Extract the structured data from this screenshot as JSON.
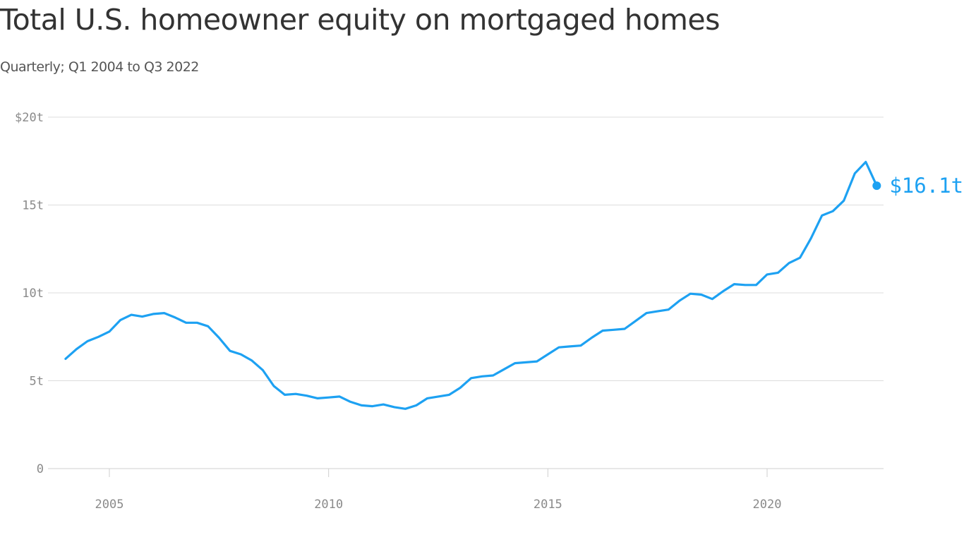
{
  "chart_data": {
    "type": "line",
    "title": "Total U.S. homeowner equity on mortgaged homes",
    "subtitle": "Quarterly; Q1 2004 to Q3 2022",
    "xlabel": "",
    "ylabel": "",
    "xlim": [
      2004,
      2022.5
    ],
    "ylim": [
      0,
      20
    ],
    "grid": true,
    "line_color": "#1da1f2",
    "x_ticks": [
      {
        "value": 2005,
        "label": "2005"
      },
      {
        "value": 2010,
        "label": "2010"
      },
      {
        "value": 2015,
        "label": "2015"
      },
      {
        "value": 2020,
        "label": "2020"
      }
    ],
    "y_ticks": [
      {
        "value": 0,
        "label": "0"
      },
      {
        "value": 5,
        "label": "5t"
      },
      {
        "value": 10,
        "label": "10t"
      },
      {
        "value": 15,
        "label": "15t"
      },
      {
        "value": 20,
        "label": "$20t"
      }
    ],
    "end_label": "$16.1t",
    "series": [
      {
        "x": [
          2004.0,
          2004.25,
          2004.5,
          2004.75,
          2005.0,
          2005.25,
          2005.5,
          2005.75,
          2006.0,
          2006.25,
          2006.5,
          2006.75,
          2007.0,
          2007.25,
          2007.5,
          2007.75,
          2008.0,
          2008.25,
          2008.5,
          2008.75,
          2009.0,
          2009.25,
          2009.5,
          2009.75,
          2010.0,
          2010.25,
          2010.5,
          2010.75,
          2011.0,
          2011.25,
          2011.5,
          2011.75,
          2012.0,
          2012.25,
          2012.5,
          2012.75,
          2013.0,
          2013.25,
          2013.5,
          2013.75,
          2014.0,
          2014.25,
          2014.5,
          2014.75,
          2015.0,
          2015.25,
          2015.5,
          2015.75,
          2016.0,
          2016.25,
          2016.5,
          2016.75,
          2017.0,
          2017.25,
          2017.5,
          2017.75,
          2018.0,
          2018.25,
          2018.5,
          2018.75,
          2019.0,
          2019.25,
          2019.5,
          2019.75,
          2020.0,
          2020.25,
          2020.5,
          2020.75,
          2021.0,
          2021.25,
          2021.5,
          2021.75,
          2022.0,
          2022.25,
          2022.5
        ],
        "values": [
          6.25,
          6.8,
          7.25,
          7.5,
          7.8,
          8.45,
          8.75,
          8.65,
          8.8,
          8.85,
          8.6,
          8.3,
          8.3,
          8.1,
          7.45,
          6.7,
          6.5,
          6.15,
          5.6,
          4.7,
          4.2,
          4.25,
          4.15,
          4.0,
          4.05,
          4.1,
          3.8,
          3.6,
          3.55,
          3.65,
          3.5,
          3.4,
          3.6,
          4.0,
          4.1,
          4.2,
          4.6,
          5.15,
          5.25,
          5.3,
          5.65,
          6.0,
          6.05,
          6.1,
          6.5,
          6.9,
          6.95,
          7.0,
          7.45,
          7.85,
          7.9,
          7.95,
          8.4,
          8.85,
          8.95,
          9.05,
          9.55,
          9.95,
          9.9,
          9.65,
          10.1,
          10.5,
          10.45,
          10.45,
          11.05,
          11.15,
          11.7,
          12.0,
          13.1,
          14.4,
          14.65,
          15.25,
          16.8,
          17.45,
          16.1
        ]
      }
    ]
  }
}
